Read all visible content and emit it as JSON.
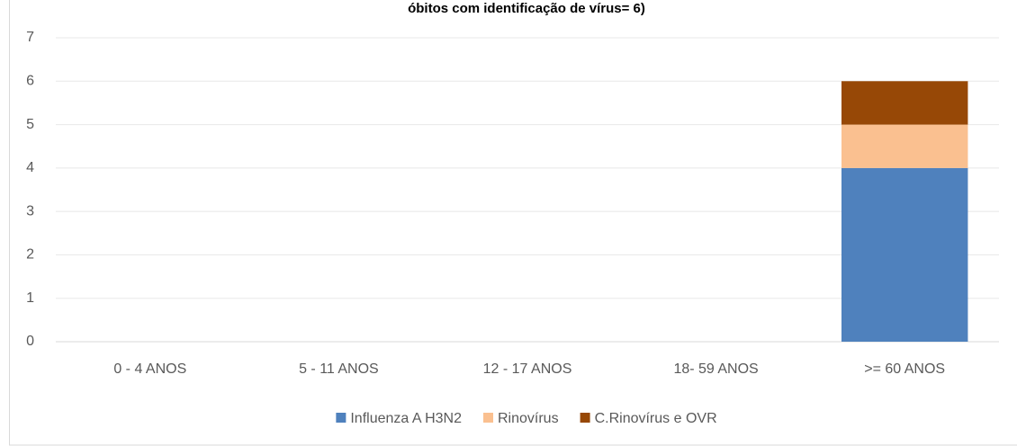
{
  "chart_data": {
    "type": "stacked_bar",
    "title": "óbitos com identificação de vírus= 6)",
    "categories": [
      "0 - 4 ANOS",
      "5 - 11 ANOS",
      "12 - 17 ANOS",
      "18- 59 ANOS",
      ">= 60 ANOS"
    ],
    "series": [
      {
        "name": "Influenza A H3N2",
        "color": "#4f81bd",
        "values": [
          0,
          0,
          0,
          0,
          4
        ]
      },
      {
        "name": "Rinovírus",
        "color": "#fac090",
        "values": [
          0,
          0,
          0,
          0,
          1
        ]
      },
      {
        "name": "C.Rinovírus e OVR",
        "color": "#974806",
        "values": [
          0,
          0,
          0,
          0,
          1
        ]
      }
    ],
    "ylim": [
      0,
      7
    ],
    "yticks": [
      0,
      1,
      2,
      3,
      4,
      5,
      6,
      7
    ],
    "grid": true,
    "legend": "bottom"
  }
}
